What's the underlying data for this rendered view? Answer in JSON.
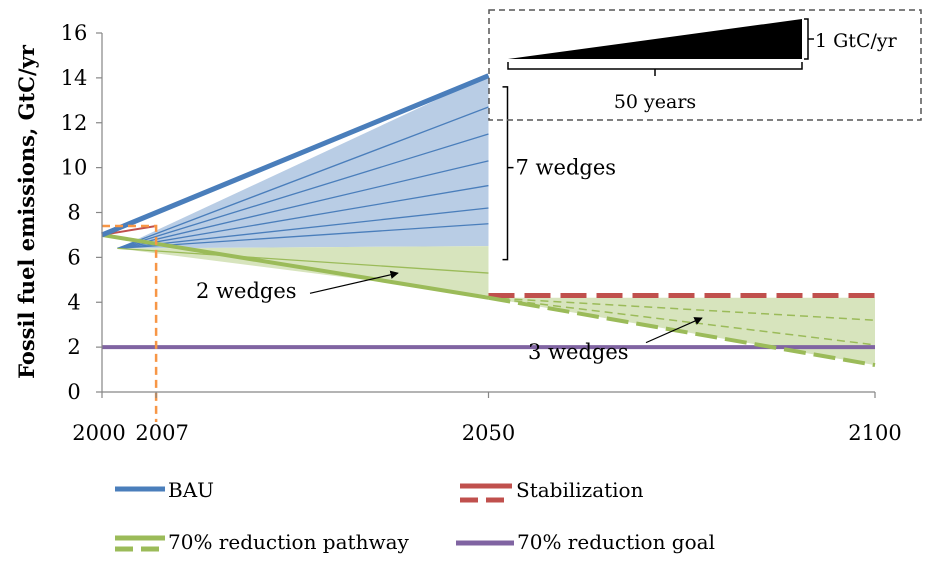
{
  "colors": {
    "bau": "#4a7ebb",
    "wedge_fill": "#b9cde5",
    "stabilization": "#c0504d",
    "pathway": "#9bbb59",
    "pathway_fill": "#d7e4bd",
    "goal": "#8064a2",
    "marker_2007": "#f79646"
  },
  "chart_data": {
    "type": "line",
    "xlabel": "",
    "ylabel": "Fossil fuel emissions, GtC/yr",
    "xlim": [
      2000,
      2100
    ],
    "ylim": [
      0,
      16
    ],
    "x_ticks": [
      "2000",
      "2007",
      "2050",
      "2100"
    ],
    "y_ticks": [
      "0",
      "2",
      "4",
      "6",
      "8",
      "10",
      "12",
      "14",
      "16"
    ],
    "grid": false,
    "legend_position": "bottom",
    "series": [
      {
        "name": "BAU",
        "style": "solid",
        "x": [
          2000,
          2050
        ],
        "y": [
          7.0,
          14.1
        ]
      },
      {
        "name": "Stabilization",
        "style": "dashed",
        "x": [
          2000,
          2007,
          2050,
          2100
        ],
        "y": [
          7.0,
          7.4,
          4.3,
          4.3
        ]
      },
      {
        "name": "70% reduction pathway",
        "style": "solid-then-dashed",
        "x": [
          2000,
          2050,
          2100
        ],
        "y": [
          7.0,
          4.2,
          1.2
        ]
      },
      {
        "name": "70% reduction goal",
        "style": "solid",
        "x": [
          2000,
          2100
        ],
        "y": [
          2.0,
          2.0
        ]
      }
    ],
    "wedge_groups": [
      {
        "label": "7 wedges",
        "x": [
          2002,
          2050
        ],
        "lines_end_y": [
          14.1,
          12.7,
          11.5,
          10.3,
          9.2,
          8.2,
          7.5,
          6.5
        ],
        "start_y": 6.4
      },
      {
        "label": "2 wedges",
        "x": [
          2002,
          2050
        ],
        "lines_end_y": [
          6.5,
          5.3,
          4.3
        ],
        "start_y": 6.4
      },
      {
        "label": "3 wedges",
        "x": [
          2050,
          2100
        ],
        "lines_end_y": [
          4.2,
          3.2,
          2.1,
          1.2
        ],
        "start_y": 4.2
      }
    ],
    "marker_year": 2007,
    "inset": {
      "height_label": "1 GtC/yr",
      "width_label": "50 years"
    },
    "annotations": [
      "7 wedges",
      "2 wedges",
      "3 wedges"
    ]
  }
}
